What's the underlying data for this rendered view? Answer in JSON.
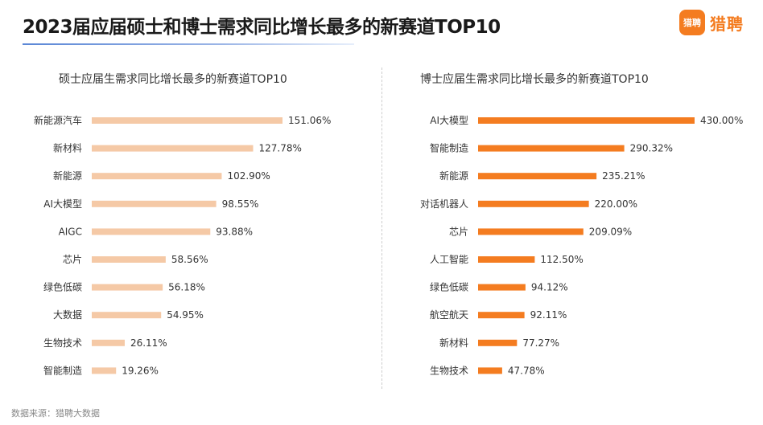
{
  "header": {
    "title": "2023届应届硕士和博士需求同比增长最多的新赛道TOP10",
    "logo_badge": "猎聘",
    "logo_text": "猎聘"
  },
  "source": "数据来源：猎聘大数据",
  "colors": {
    "master_bar": "#f5c9a6",
    "phd_bar": "#f47c20",
    "brand": "#f47c20"
  },
  "chart_data": [
    {
      "type": "bar",
      "orientation": "horizontal",
      "title": "硕士应届生需求同比增长最多的新赛道TOP10",
      "categories": [
        "新能源汽车",
        "新材料",
        "新能源",
        "AI大模型",
        "AIGC",
        "芯片",
        "绿色低碳",
        "大数据",
        "生物技术",
        "智能制造"
      ],
      "values": [
        151.06,
        127.78,
        102.9,
        98.55,
        93.88,
        58.56,
        56.18,
        54.95,
        26.11,
        19.26
      ],
      "value_labels": [
        "151.06%",
        "127.78%",
        "102.90%",
        "98.55%",
        "93.88%",
        "58.56%",
        "56.18%",
        "54.95%",
        "26.11%",
        "19.26%"
      ],
      "unit": "%"
    },
    {
      "type": "bar",
      "orientation": "horizontal",
      "title": "博士应届生需求同比增长最多的新赛道TOP10",
      "categories": [
        "AI大模型",
        "智能制造",
        "新能源",
        "对话机器人",
        "芯片",
        "人工智能",
        "绿色低碳",
        "航空航天",
        "新材料",
        "生物技术"
      ],
      "values": [
        430.0,
        290.32,
        235.21,
        220.0,
        209.09,
        112.5,
        94.12,
        92.11,
        77.27,
        47.78
      ],
      "value_labels": [
        "430.00%",
        "290.32%",
        "235.21%",
        "220.00%",
        "209.09%",
        "112.50%",
        "94.12%",
        "92.11%",
        "77.27%",
        "47.78%"
      ],
      "unit": "%"
    }
  ]
}
